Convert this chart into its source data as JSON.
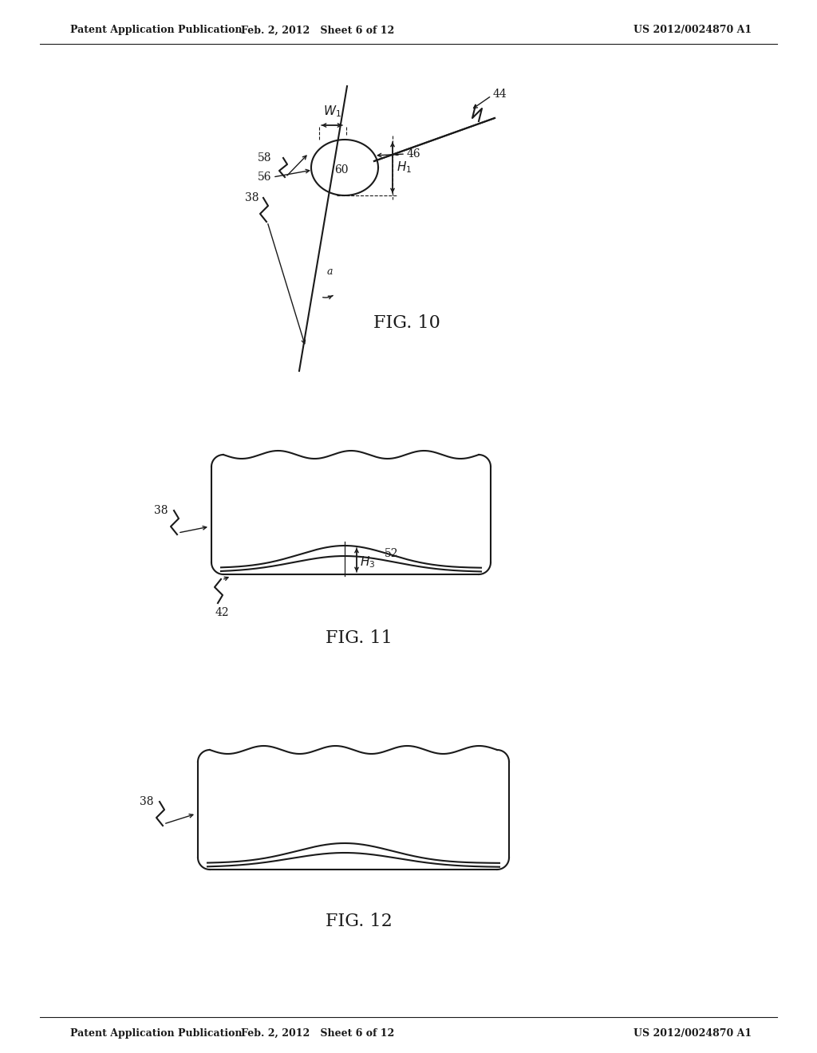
{
  "bg_color": "#ffffff",
  "line_color": "#1a1a1a",
  "header_left": "Patent Application Publication",
  "header_mid": "Feb. 2, 2012   Sheet 6 of 12",
  "header_right": "US 2012/0024870 A1",
  "fig10_label": "FIG. 10",
  "fig11_label": "FIG. 11",
  "fig12_label": "FIG. 12"
}
